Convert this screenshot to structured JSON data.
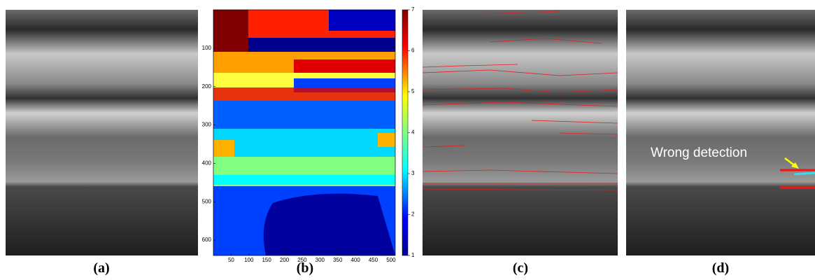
{
  "panels": [
    {
      "label": "(a)"
    },
    {
      "label": "(b)"
    },
    {
      "label": "(c)"
    },
    {
      "label": "(d)"
    }
  ],
  "panel_b": {
    "yticks": [
      100,
      200,
      300,
      400,
      500,
      600
    ],
    "ylim": [
      0,
      640
    ],
    "xticks": [
      50,
      100,
      150,
      200,
      250,
      300,
      350,
      400,
      450,
      500
    ],
    "xlim": [
      0,
      512
    ],
    "colorbar_ticks": [
      1,
      2,
      3,
      4,
      5,
      6,
      7
    ],
    "colorbar_lim": [
      1,
      7
    ]
  },
  "annotation": "Wrong detection"
}
